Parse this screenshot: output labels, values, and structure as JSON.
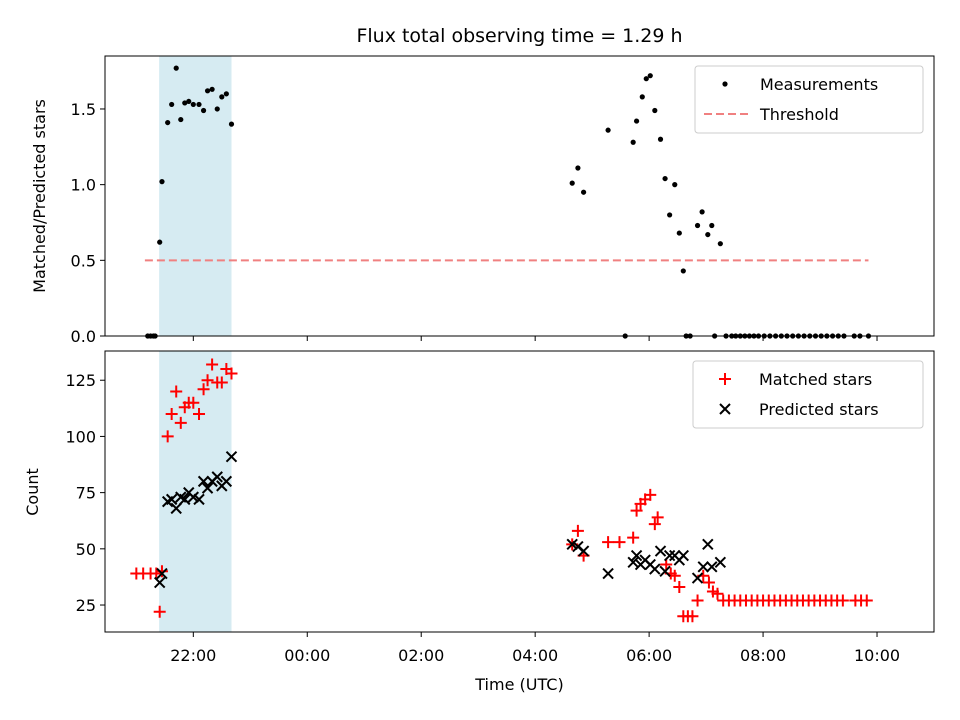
{
  "chart_data": [
    {
      "type": "scatter",
      "title": "Flux total observing time = 1.29 h",
      "xlabel": "",
      "ylabel": "Matched/Predicted stars",
      "x_ticks": [
        "22:00",
        "00:00",
        "02:00",
        "04:00",
        "06:00",
        "08:00",
        "10:00"
      ],
      "x_tick_hours": [
        22,
        24,
        26,
        28,
        30,
        32,
        34
      ],
      "xlim_hours": [
        20.45,
        35.0
      ],
      "ylim": [
        0,
        1.85
      ],
      "y_ticks": [
        0.0,
        0.5,
        1.0,
        1.5
      ],
      "y_tick_labels": [
        "0.0",
        "0.5",
        "1.0",
        "1.5"
      ],
      "highlight_span_hours": [
        21.4,
        22.67
      ],
      "highlight_color": "#add8e6",
      "threshold": {
        "name": "Threshold",
        "value": 0.5,
        "x_hours": [
          21.15,
          33.85
        ],
        "color": "#f08080"
      },
      "series": [
        {
          "name": "Measurements",
          "color": "#000000",
          "marker": "dot",
          "points": [
            [
              21.2,
              0
            ],
            [
              21.25,
              0
            ],
            [
              21.3,
              0
            ],
            [
              21.33,
              0
            ],
            [
              21.41,
              0.62
            ],
            [
              21.45,
              1.02
            ],
            [
              21.55,
              1.41
            ],
            [
              21.62,
              1.53
            ],
            [
              21.7,
              1.77
            ],
            [
              21.78,
              1.43
            ],
            [
              21.85,
              1.54
            ],
            [
              21.92,
              1.55
            ],
            [
              22.0,
              1.53
            ],
            [
              22.1,
              1.53
            ],
            [
              22.18,
              1.49
            ],
            [
              22.25,
              1.62
            ],
            [
              22.33,
              1.63
            ],
            [
              22.42,
              1.5
            ],
            [
              22.5,
              1.58
            ],
            [
              22.58,
              1.6
            ],
            [
              22.67,
              1.4
            ],
            [
              28.65,
              1.01
            ],
            [
              28.75,
              1.11
            ],
            [
              28.85,
              0.95
            ],
            [
              29.28,
              1.36
            ],
            [
              29.58,
              0
            ],
            [
              29.72,
              1.28
            ],
            [
              29.78,
              1.42
            ],
            [
              29.88,
              1.58
            ],
            [
              29.95,
              1.7
            ],
            [
              30.02,
              1.72
            ],
            [
              30.1,
              1.49
            ],
            [
              30.2,
              1.3
            ],
            [
              30.28,
              1.04
            ],
            [
              30.36,
              0.8
            ],
            [
              30.45,
              1.0
            ],
            [
              30.53,
              0.68
            ],
            [
              30.6,
              0.43
            ],
            [
              30.65,
              0
            ],
            [
              30.72,
              0
            ],
            [
              30.85,
              0.73
            ],
            [
              30.93,
              0.82
            ],
            [
              31.03,
              0.67
            ],
            [
              31.1,
              0.73
            ],
            [
              31.15,
              0
            ],
            [
              31.25,
              0.61
            ],
            [
              31.35,
              0
            ],
            [
              31.45,
              0
            ],
            [
              31.52,
              0
            ],
            [
              31.6,
              0
            ],
            [
              31.68,
              0
            ],
            [
              31.76,
              0
            ],
            [
              31.84,
              0
            ],
            [
              31.92,
              0
            ],
            [
              32.02,
              0
            ],
            [
              32.12,
              0
            ],
            [
              32.22,
              0
            ],
            [
              32.32,
              0
            ],
            [
              32.42,
              0
            ],
            [
              32.52,
              0
            ],
            [
              32.62,
              0
            ],
            [
              32.72,
              0
            ],
            [
              32.82,
              0
            ],
            [
              32.92,
              0
            ],
            [
              33.02,
              0
            ],
            [
              33.12,
              0
            ],
            [
              33.22,
              0
            ],
            [
              33.32,
              0
            ],
            [
              33.42,
              0
            ],
            [
              33.6,
              0
            ],
            [
              33.7,
              0
            ],
            [
              33.85,
              0
            ]
          ]
        }
      ],
      "legend_position": "top-right"
    },
    {
      "type": "scatter",
      "title": "",
      "xlabel": "Time (UTC)",
      "ylabel": "Count",
      "x_ticks": [
        "22:00",
        "00:00",
        "02:00",
        "04:00",
        "06:00",
        "08:00",
        "10:00"
      ],
      "x_tick_hours": [
        22,
        24,
        26,
        28,
        30,
        32,
        34
      ],
      "xlim_hours": [
        20.45,
        35.0
      ],
      "ylim": [
        13,
        138
      ],
      "y_ticks": [
        25,
        50,
        75,
        100,
        125
      ],
      "y_tick_labels": [
        "25",
        "50",
        "75",
        "100",
        "125"
      ],
      "highlight_span_hours": [
        21.4,
        22.67
      ],
      "highlight_color": "#add8e6",
      "series": [
        {
          "name": "Matched stars",
          "color": "#ff0000",
          "marker": "plus",
          "points": [
            [
              21.0,
              39
            ],
            [
              21.12,
              39
            ],
            [
              21.25,
              39
            ],
            [
              21.35,
              39
            ],
            [
              21.41,
              22
            ],
            [
              21.45,
              40
            ],
            [
              21.55,
              100
            ],
            [
              21.62,
              110
            ],
            [
              21.7,
              120
            ],
            [
              21.78,
              106
            ],
            [
              21.85,
              113
            ],
            [
              21.92,
              115
            ],
            [
              22.0,
              115
            ],
            [
              22.1,
              110
            ],
            [
              22.18,
              121
            ],
            [
              22.25,
              125
            ],
            [
              22.33,
              132
            ],
            [
              22.42,
              124
            ],
            [
              22.5,
              124
            ],
            [
              22.58,
              130
            ],
            [
              22.67,
              128
            ],
            [
              28.65,
              52
            ],
            [
              28.75,
              58
            ],
            [
              28.85,
              47
            ],
            [
              29.28,
              53
            ],
            [
              29.48,
              53
            ],
            [
              29.72,
              55
            ],
            [
              29.78,
              67
            ],
            [
              29.85,
              70
            ],
            [
              29.93,
              72
            ],
            [
              30.02,
              74
            ],
            [
              30.1,
              61
            ],
            [
              30.15,
              64
            ],
            [
              30.3,
              43
            ],
            [
              30.38,
              39
            ],
            [
              30.45,
              38
            ],
            [
              30.53,
              33
            ],
            [
              30.6,
              20
            ],
            [
              30.68,
              20
            ],
            [
              30.76,
              20
            ],
            [
              30.85,
              27
            ],
            [
              30.95,
              38
            ],
            [
              31.05,
              35
            ],
            [
              31.12,
              31
            ],
            [
              31.2,
              30
            ],
            [
              31.3,
              27
            ],
            [
              31.4,
              27
            ],
            [
              31.5,
              27
            ],
            [
              31.6,
              27
            ],
            [
              31.7,
              27
            ],
            [
              31.8,
              27
            ],
            [
              31.9,
              27
            ],
            [
              32.0,
              27
            ],
            [
              32.1,
              27
            ],
            [
              32.2,
              27
            ],
            [
              32.3,
              27
            ],
            [
              32.4,
              27
            ],
            [
              32.5,
              27
            ],
            [
              32.6,
              27
            ],
            [
              32.7,
              27
            ],
            [
              32.8,
              27
            ],
            [
              32.9,
              27
            ],
            [
              33.0,
              27
            ],
            [
              33.1,
              27
            ],
            [
              33.2,
              27
            ],
            [
              33.3,
              27
            ],
            [
              33.4,
              27
            ],
            [
              33.62,
              27
            ],
            [
              33.72,
              27
            ],
            [
              33.82,
              27
            ]
          ]
        },
        {
          "name": "Predicted stars",
          "color": "#000000",
          "marker": "x",
          "points": [
            [
              21.41,
              35
            ],
            [
              21.45,
              39
            ],
            [
              21.55,
              71
            ],
            [
              21.62,
              72
            ],
            [
              21.7,
              68
            ],
            [
              21.78,
              73
            ],
            [
              21.85,
              72
            ],
            [
              21.92,
              75
            ],
            [
              22.0,
              73
            ],
            [
              22.1,
              72
            ],
            [
              22.18,
              80
            ],
            [
              22.25,
              77
            ],
            [
              22.33,
              80
            ],
            [
              22.42,
              82
            ],
            [
              22.5,
              78
            ],
            [
              22.58,
              80
            ],
            [
              22.67,
              91
            ],
            [
              28.65,
              52
            ],
            [
              28.75,
              51
            ],
            [
              28.85,
              49
            ],
            [
              29.28,
              39
            ],
            [
              29.72,
              44
            ],
            [
              29.78,
              47
            ],
            [
              29.85,
              43
            ],
            [
              29.93,
              45
            ],
            [
              30.02,
              43
            ],
            [
              30.1,
              41
            ],
            [
              30.2,
              49
            ],
            [
              30.28,
              40
            ],
            [
              30.36,
              47
            ],
            [
              30.45,
              47
            ],
            [
              30.53,
              45
            ],
            [
              30.6,
              47
            ],
            [
              30.85,
              37
            ],
            [
              30.95,
              42
            ],
            [
              31.03,
              52
            ],
            [
              31.1,
              42
            ],
            [
              31.25,
              44
            ]
          ]
        }
      ],
      "legend_position": "top-right"
    }
  ]
}
